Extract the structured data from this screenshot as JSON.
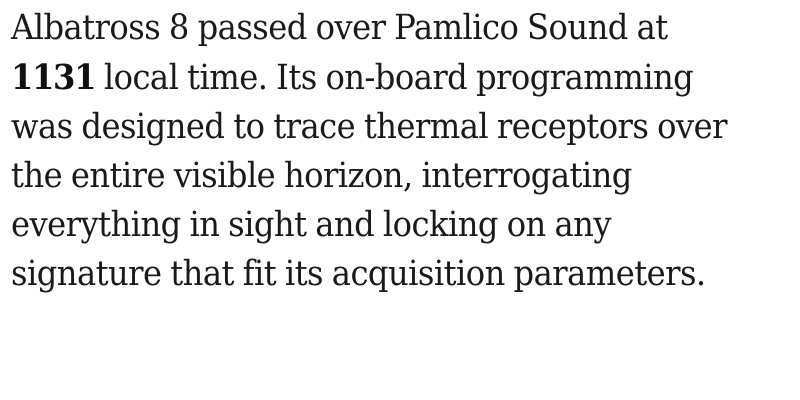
{
  "document": {
    "lines": [
      {
        "text": "Albatross 8 passed over Pamlico Sound at"
      },
      {
        "emphasis": "1131",
        "text": " local time. Its on-board programming"
      },
      {
        "text": "was designed to trace thermal receptors over"
      },
      {
        "text": "the entire visible horizon, interrogating"
      },
      {
        "text": "everything in sight and locking on any"
      },
      {
        "text": "signature that fit its acquisition parameters."
      }
    ]
  }
}
